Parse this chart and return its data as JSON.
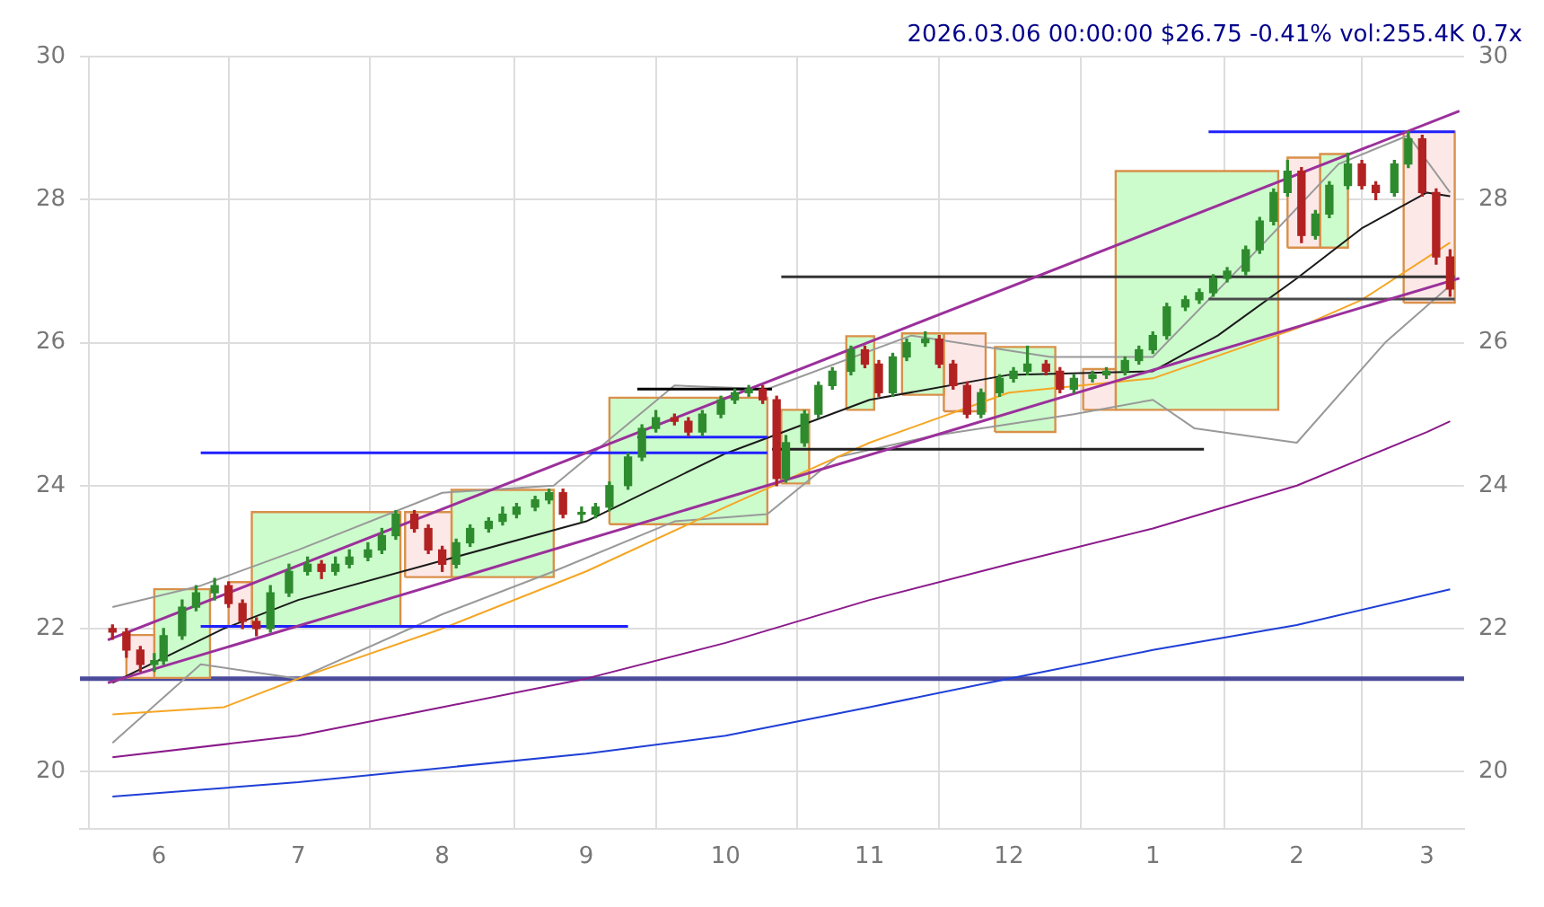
{
  "chart_data": {
    "type": "candlestick",
    "title": "2026.03.06 00:00:00 $26.75 -0.41% vol:255.4K 0.7x",
    "x": [
      "2025-05-22",
      "2025-05-25",
      "2025-05-28",
      "2025-05-31",
      "2025-06-02",
      "2025-06-06",
      "2025-06-09",
      "2025-06-13",
      "2025-06-16",
      "2025-06-19",
      "2025-06-22",
      "2025-06-25",
      "2025-06-29",
      "2025-07-03",
      "2025-07-06",
      "2025-07-09",
      "2025-07-12",
      "2025-07-16",
      "2025-07-19",
      "2025-07-22",
      "2025-07-26",
      "2025-07-29",
      "2025-08-01",
      "2025-08-04",
      "2025-08-07",
      "2025-08-11",
      "2025-08-14",
      "2025-08-17",
      "2025-08-21",
      "2025-08-24",
      "2025-08-27",
      "2025-08-31",
      "2025-09-03",
      "2025-09-06",
      "2025-09-10",
      "2025-09-13",
      "2025-09-16",
      "2025-09-20",
      "2025-09-23",
      "2025-09-26",
      "2025-09-30",
      "2025-10-03",
      "2025-10-06",
      "2025-10-09",
      "2025-10-12",
      "2025-10-14",
      "2025-10-18",
      "2025-10-21",
      "2025-10-24",
      "2025-10-28",
      "2025-10-31",
      "2025-11-03",
      "2025-11-06",
      "2025-11-09",
      "2025-11-13",
      "2025-11-16",
      "2025-11-19",
      "2025-11-22",
      "2025-11-25",
      "2025-11-29",
      "2025-12-02",
      "2025-12-05",
      "2025-12-09",
      "2025-12-12",
      "2025-12-15",
      "2025-12-19",
      "2025-12-22",
      "2025-12-26",
      "2025-12-29",
      "2026-01-01",
      "2026-01-04",
      "2026-01-08",
      "2026-01-11",
      "2026-01-14",
      "2026-01-17",
      "2026-01-21",
      "2026-01-24",
      "2026-01-27",
      "2026-01-30",
      "2026-02-02",
      "2026-02-05",
      "2026-02-08",
      "2026-02-12",
      "2026-02-15",
      "2026-02-18",
      "2026-02-22",
      "2026-02-25",
      "2026-02-28",
      "2026-03-03",
      "2026-03-06"
    ],
    "ohlc": [
      [
        22.0,
        22.05,
        21.85,
        21.95
      ],
      [
        21.95,
        22.0,
        21.6,
        21.7
      ],
      [
        21.7,
        21.75,
        21.4,
        21.5
      ],
      [
        21.5,
        21.65,
        21.4,
        21.55
      ],
      [
        21.55,
        22.0,
        21.5,
        21.9
      ],
      [
        21.9,
        22.4,
        21.85,
        22.3
      ],
      [
        22.3,
        22.6,
        22.25,
        22.5
      ],
      [
        22.5,
        22.7,
        22.4,
        22.6
      ],
      [
        22.6,
        22.65,
        22.3,
        22.35
      ],
      [
        22.35,
        22.4,
        22.0,
        22.1
      ],
      [
        22.1,
        22.15,
        21.9,
        22.0
      ],
      [
        22.0,
        22.6,
        21.95,
        22.5
      ],
      [
        22.5,
        22.9,
        22.45,
        22.8
      ],
      [
        22.8,
        23.0,
        22.75,
        22.9
      ],
      [
        22.9,
        22.95,
        22.7,
        22.8
      ],
      [
        22.8,
        23.0,
        22.75,
        22.9
      ],
      [
        22.9,
        23.1,
        22.85,
        23.0
      ],
      [
        23.0,
        23.2,
        22.95,
        23.1
      ],
      [
        23.1,
        23.4,
        23.05,
        23.3
      ],
      [
        23.3,
        23.65,
        23.25,
        23.6
      ],
      [
        23.6,
        23.65,
        23.35,
        23.4
      ],
      [
        23.4,
        23.45,
        23.05,
        23.1
      ],
      [
        23.1,
        23.15,
        22.8,
        22.9
      ],
      [
        22.9,
        23.25,
        22.85,
        23.2
      ],
      [
        23.2,
        23.45,
        23.15,
        23.4
      ],
      [
        23.4,
        23.55,
        23.35,
        23.5
      ],
      [
        23.5,
        23.7,
        23.45,
        23.6
      ],
      [
        23.6,
        23.75,
        23.55,
        23.7
      ],
      [
        23.7,
        23.85,
        23.65,
        23.8
      ],
      [
        23.8,
        23.95,
        23.75,
        23.9
      ],
      [
        23.9,
        23.95,
        23.55,
        23.6
      ],
      [
        23.6,
        23.7,
        23.5,
        23.6
      ],
      [
        23.6,
        23.75,
        23.55,
        23.7
      ],
      [
        23.7,
        24.05,
        23.65,
        24.0
      ],
      [
        24.0,
        24.45,
        23.95,
        24.4
      ],
      [
        24.4,
        24.85,
        24.35,
        24.8
      ],
      [
        24.8,
        25.05,
        24.75,
        24.95
      ],
      [
        24.95,
        25.0,
        24.85,
        24.9
      ],
      [
        24.9,
        24.95,
        24.7,
        24.75
      ],
      [
        24.75,
        25.05,
        24.7,
        25.0
      ],
      [
        25.0,
        25.25,
        24.95,
        25.2
      ],
      [
        25.2,
        25.35,
        25.15,
        25.3
      ],
      [
        25.3,
        25.4,
        25.25,
        25.35
      ],
      [
        25.35,
        25.4,
        25.15,
        25.2
      ],
      [
        25.2,
        25.25,
        24.0,
        24.1
      ],
      [
        24.1,
        24.7,
        24.05,
        24.6
      ],
      [
        24.6,
        25.05,
        24.55,
        25.0
      ],
      [
        25.0,
        25.45,
        24.95,
        25.4
      ],
      [
        25.4,
        25.65,
        25.35,
        25.6
      ],
      [
        25.6,
        25.95,
        25.55,
        25.9
      ],
      [
        25.9,
        25.95,
        25.65,
        25.7
      ],
      [
        25.7,
        25.75,
        25.25,
        25.3
      ],
      [
        25.3,
        25.85,
        25.25,
        25.8
      ],
      [
        25.8,
        26.05,
        25.75,
        26.0
      ],
      [
        26.0,
        26.15,
        25.95,
        26.05
      ],
      [
        26.05,
        26.1,
        25.65,
        25.7
      ],
      [
        25.7,
        25.75,
        25.35,
        25.4
      ],
      [
        25.4,
        25.45,
        24.95,
        25.0
      ],
      [
        25.0,
        25.35,
        24.95,
        25.3
      ],
      [
        25.3,
        25.55,
        25.25,
        25.5
      ],
      [
        25.5,
        25.65,
        25.45,
        25.6
      ],
      [
        25.6,
        25.95,
        25.55,
        25.7
      ],
      [
        25.7,
        25.75,
        25.55,
        25.6
      ],
      [
        25.6,
        25.65,
        25.3,
        25.35
      ],
      [
        25.35,
        25.55,
        25.3,
        25.5
      ],
      [
        25.5,
        25.6,
        25.45,
        25.55
      ],
      [
        25.55,
        25.65,
        25.5,
        25.6
      ],
      [
        25.6,
        25.8,
        25.55,
        25.75
      ],
      [
        25.75,
        25.95,
        25.7,
        25.9
      ],
      [
        25.9,
        26.15,
        25.85,
        26.1
      ],
      [
        26.1,
        26.55,
        26.05,
        26.5
      ],
      [
        26.5,
        26.65,
        26.45,
        26.6
      ],
      [
        26.6,
        26.75,
        26.55,
        26.7
      ],
      [
        26.7,
        26.95,
        26.65,
        26.9
      ],
      [
        26.9,
        27.05,
        26.85,
        27.0
      ],
      [
        27.0,
        27.35,
        26.95,
        27.3
      ],
      [
        27.3,
        27.75,
        27.25,
        27.7
      ],
      [
        27.7,
        28.15,
        27.65,
        28.1
      ],
      [
        28.1,
        28.55,
        28.05,
        28.4
      ],
      [
        28.4,
        28.45,
        27.4,
        27.5
      ],
      [
        27.5,
        27.85,
        27.45,
        27.8
      ],
      [
        27.8,
        28.25,
        27.75,
        28.2
      ],
      [
        28.2,
        28.65,
        28.15,
        28.5
      ],
      [
        28.5,
        28.55,
        28.15,
        28.2
      ],
      [
        28.2,
        28.25,
        28.0,
        28.1
      ],
      [
        28.1,
        28.55,
        28.05,
        28.5
      ],
      [
        28.5,
        28.95,
        28.45,
        28.85
      ],
      [
        28.85,
        28.9,
        28.05,
        28.1
      ],
      [
        28.1,
        28.15,
        27.1,
        27.2
      ],
      [
        27.2,
        27.3,
        26.65,
        26.75
      ]
    ],
    "series": [
      {
        "type": "area",
        "color": "#fde8e8",
        "x": [
          "2025-05-25",
          "2025-05-31",
          "2025-05-31",
          "2025-05-25",
          "2025-05-25"
        ],
        "values": [
          21.31,
          21.31,
          21.91,
          21.91,
          21.31
        ]
      },
      {
        "type": "area",
        "color": "#ccfccc",
        "x": [
          "2025-05-31",
          "2025-06-12",
          "2025-06-12",
          "2025-05-31",
          "2025-05-31"
        ],
        "values": [
          21.31,
          21.31,
          22.55,
          22.55,
          21.31
        ]
      },
      {
        "type": "area",
        "color": "#fde8e8",
        "x": [
          "2025-06-16",
          "2025-06-21",
          "2025-06-21",
          "2025-06-16",
          "2025-06-16"
        ],
        "values": [
          22.03,
          22.03,
          22.65,
          22.65,
          22.03
        ]
      },
      {
        "type": "area",
        "color": "#ccfccc",
        "x": [
          "2025-06-21",
          "2025-07-23",
          "2025-07-23",
          "2025-06-21",
          "2025-06-21"
        ],
        "values": [
          22.03,
          22.03,
          23.63,
          23.63,
          22.03
        ]
      },
      {
        "type": "area",
        "color": "#fde8e8",
        "x": [
          "2025-07-24",
          "2025-08-03",
          "2025-08-03",
          "2025-07-24",
          "2025-07-24"
        ],
        "values": [
          22.72,
          22.72,
          23.63,
          23.63,
          22.72
        ]
      },
      {
        "type": "area",
        "color": "#ccfccc",
        "x": [
          "2025-08-03",
          "2025-08-25",
          "2025-08-25",
          "2025-08-03",
          "2025-08-03"
        ],
        "values": [
          22.72,
          22.72,
          23.94,
          23.94,
          22.72
        ]
      },
      {
        "type": "area",
        "color": "#ccfccc",
        "x": [
          "2025-09-06",
          "2025-10-10",
          "2025-10-10",
          "2025-09-06",
          "2025-09-06"
        ],
        "values": [
          23.46,
          23.46,
          25.23,
          25.23,
          23.46
        ]
      },
      {
        "type": "area",
        "color": "#ccfccc",
        "x": [
          "2025-10-13",
          "2025-10-19",
          "2025-10-19",
          "2025-10-13",
          "2025-10-13"
        ],
        "values": [
          24.03,
          24.03,
          25.06,
          25.06,
          24.03
        ]
      },
      {
        "type": "area",
        "color": "#ccfccc",
        "x": [
          "2025-10-27",
          "2025-11-02",
          "2025-11-02",
          "2025-10-27",
          "2025-10-27"
        ],
        "values": [
          25.06,
          25.06,
          26.09,
          26.09,
          25.06
        ]
      },
      {
        "type": "area",
        "color": "#ccfccc",
        "x": [
          "2025-11-08",
          "2025-11-17",
          "2025-11-17",
          "2025-11-08",
          "2025-11-08"
        ],
        "values": [
          25.27,
          25.27,
          26.13,
          26.13,
          25.27
        ]
      },
      {
        "type": "area",
        "color": "#fde8e8",
        "x": [
          "2025-11-17",
          "2025-11-26",
          "2025-11-26",
          "2025-11-17",
          "2025-11-17"
        ],
        "values": [
          25.04,
          25.04,
          26.13,
          26.13,
          25.04
        ]
      },
      {
        "type": "area",
        "color": "#ccfccc",
        "x": [
          "2025-11-28",
          "2025-12-11",
          "2025-12-11",
          "2025-11-28",
          "2025-11-28"
        ],
        "values": [
          24.75,
          24.75,
          25.94,
          25.94,
          24.75
        ]
      },
      {
        "type": "area",
        "color": "#fde8e8",
        "x": [
          "2025-12-17",
          "2025-12-24",
          "2025-12-24",
          "2025-12-17",
          "2025-12-17"
        ],
        "values": [
          25.06,
          25.06,
          25.63,
          25.63,
          25.06
        ]
      },
      {
        "type": "area",
        "color": "#ccfccc",
        "x": [
          "2025-12-24",
          "2026-01-28",
          "2026-01-28",
          "2025-12-24",
          "2025-12-24"
        ],
        "values": [
          25.06,
          25.06,
          28.4,
          28.4,
          25.06
        ]
      },
      {
        "type": "area",
        "color": "#fde8e8",
        "x": [
          "2026-01-30",
          "2026-02-06",
          "2026-02-06",
          "2026-01-30",
          "2026-01-30"
        ],
        "values": [
          27.33,
          27.33,
          28.59,
          28.59,
          27.33
        ]
      },
      {
        "type": "area",
        "color": "#ccfccc",
        "x": [
          "2026-02-06",
          "2026-02-12",
          "2026-02-12",
          "2026-02-06",
          "2026-02-06"
        ],
        "values": [
          27.33,
          27.33,
          28.64,
          28.64,
          27.33
        ]
      },
      {
        "type": "area",
        "color": "#fde8e8",
        "x": [
          "2026-02-24",
          "2026-03-07",
          "2026-03-07",
          "2026-02-24",
          "2026-02-24"
        ],
        "values": [
          26.56,
          26.56,
          28.95,
          28.95,
          26.56
        ]
      },
      {
        "type": "line",
        "color": "#1a1a1a",
        "x": [
          "2025-05-22",
          "2025-06-15",
          "2025-07-01",
          "2025-08-01",
          "2025-09-01",
          "2025-10-01",
          "2025-11-01",
          "2025-12-01",
          "2026-01-01",
          "2026-01-15",
          "2026-02-01",
          "2026-02-15",
          "2026-03-01",
          "2026-03-06"
        ],
        "values": [
          21.24,
          22.0,
          22.4,
          22.95,
          23.5,
          24.45,
          25.2,
          25.55,
          25.6,
          26.1,
          26.9,
          27.6,
          28.1,
          28.05
        ]
      },
      {
        "type": "line",
        "color": "#f5a623",
        "x": [
          "2025-05-22",
          "2025-06-15",
          "2025-07-01",
          "2025-08-01",
          "2025-09-01",
          "2025-10-01",
          "2025-11-01",
          "2025-12-01",
          "2026-01-01",
          "2026-02-01",
          "2026-02-15",
          "2026-03-06"
        ],
        "values": [
          20.8,
          20.9,
          21.3,
          22.0,
          22.8,
          23.7,
          24.6,
          25.3,
          25.5,
          26.2,
          26.6,
          27.4
        ]
      },
      {
        "type": "line",
        "color": "#8b1a8b",
        "x": [
          "2025-05-22",
          "2025-07-01",
          "2025-08-01",
          "2025-09-01",
          "2025-10-01",
          "2025-11-01",
          "2025-12-01",
          "2026-01-01",
          "2026-02-01",
          "2026-03-01",
          "2026-03-06"
        ],
        "values": [
          20.2,
          20.5,
          20.9,
          21.3,
          21.8,
          22.4,
          22.9,
          23.4,
          24.0,
          24.75,
          24.9
        ]
      },
      {
        "type": "line",
        "color": "#1f3fd6",
        "x": [
          "2025-05-22",
          "2025-07-01",
          "2025-08-01",
          "2025-09-01",
          "2025-10-01",
          "2025-11-01",
          "2025-12-01",
          "2026-01-01",
          "2026-02-01",
          "2026-03-06"
        ],
        "values": [
          19.65,
          19.85,
          20.05,
          20.25,
          20.5,
          20.9,
          21.3,
          21.7,
          22.05,
          22.55
        ]
      },
      {
        "type": "line",
        "color": "#999999",
        "x": [
          "2025-05-22",
          "2025-06-10",
          "2025-07-01",
          "2025-08-01",
          "2025-08-25",
          "2025-09-20",
          "2025-10-10",
          "2025-11-10",
          "2025-12-10",
          "2026-01-01",
          "2026-01-25",
          "2026-02-10",
          "2026-02-25",
          "2026-03-06"
        ],
        "values": [
          22.3,
          22.6,
          23.1,
          23.9,
          24.0,
          25.4,
          25.35,
          26.1,
          25.8,
          25.8,
          27.4,
          28.5,
          28.9,
          28.1
        ]
      },
      {
        "type": "line",
        "color": "#999999",
        "x": [
          "2025-05-22",
          "2025-06-10",
          "2025-07-01",
          "2025-08-01",
          "2025-08-25",
          "2025-09-20",
          "2025-10-10",
          "2025-10-25",
          "2025-11-15",
          "2025-12-15",
          "2026-01-01",
          "2026-01-10",
          "2026-02-01",
          "2026-02-20",
          "2026-03-06"
        ],
        "values": [
          20.4,
          21.5,
          21.3,
          22.2,
          22.8,
          23.5,
          23.6,
          24.4,
          24.7,
          25.0,
          25.2,
          24.8,
          24.6,
          26.0,
          26.8
        ]
      },
      {
        "type": "line",
        "color": "#9b309b",
        "x": [
          "2025-05-21",
          "2026-03-08"
        ],
        "values": [
          21.84,
          29.24
        ]
      },
      {
        "type": "line",
        "color": "#9b309b",
        "x": [
          "2025-05-21",
          "2026-03-08"
        ],
        "values": [
          21.24,
          26.9
        ]
      },
      {
        "type": "line",
        "color": "#2020ff",
        "x": [
          "2025-06-10",
          "2025-09-10"
        ],
        "values": [
          22.03,
          22.03
        ]
      },
      {
        "type": "line",
        "color": "#2020ff",
        "x": [
          "2025-06-10",
          "2025-10-10"
        ],
        "values": [
          24.46,
          24.46
        ]
      },
      {
        "type": "line",
        "color": "#2020ff",
        "x": [
          "2025-09-12",
          "2025-10-10"
        ],
        "values": [
          24.68,
          24.68
        ]
      },
      {
        "type": "line",
        "color": "#2020ff",
        "x": [
          "2026-01-13",
          "2026-03-07"
        ],
        "values": [
          28.95,
          28.95
        ]
      },
      {
        "type": "line",
        "color": "#000000",
        "x": [
          "2025-09-12",
          "2025-10-11"
        ],
        "values": [
          25.35,
          25.35
        ]
      },
      {
        "type": "line",
        "color": "#222222",
        "x": [
          "2025-10-11",
          "2026-01-12"
        ],
        "values": [
          24.51,
          24.51
        ]
      },
      {
        "type": "line",
        "color": "#333333",
        "x": [
          "2025-10-13",
          "2026-03-07"
        ],
        "values": [
          26.92,
          26.92
        ]
      },
      {
        "type": "line",
        "color": "#4a4a4a",
        "x": [
          "2026-01-13",
          "2026-03-07"
        ],
        "values": [
          26.61,
          26.61
        ]
      }
    ],
    "ref_lines": [
      {
        "axis": "y",
        "value": 21.3,
        "color": "#4b4b9b"
      }
    ],
    "xlim": [
      "2025-05-15",
      "2026-03-09"
    ],
    "xticks": [
      {
        "value": "2025-06-01",
        "label": "6"
      },
      {
        "value": "2025-07-01",
        "label": "7"
      },
      {
        "value": "2025-08-01",
        "label": "8"
      },
      {
        "value": "2025-09-01",
        "label": "9"
      },
      {
        "value": "2025-10-01",
        "label": "10"
      },
      {
        "value": "2025-11-01",
        "label": "11"
      },
      {
        "value": "2025-12-01",
        "label": "12"
      },
      {
        "value": "2026-01-01",
        "label": "1"
      },
      {
        "value": "2026-02-01",
        "label": "2"
      },
      {
        "value": "2026-03-01",
        "label": "3"
      }
    ],
    "ylim": [
      19.2,
      30
    ],
    "yticks": [
      20,
      22,
      24,
      26,
      28,
      30
    ],
    "y2lim": [
      19.2,
      30
    ],
    "y2ticks": [
      20,
      22,
      24,
      26,
      28,
      30
    ],
    "grid": true,
    "legend": false
  }
}
